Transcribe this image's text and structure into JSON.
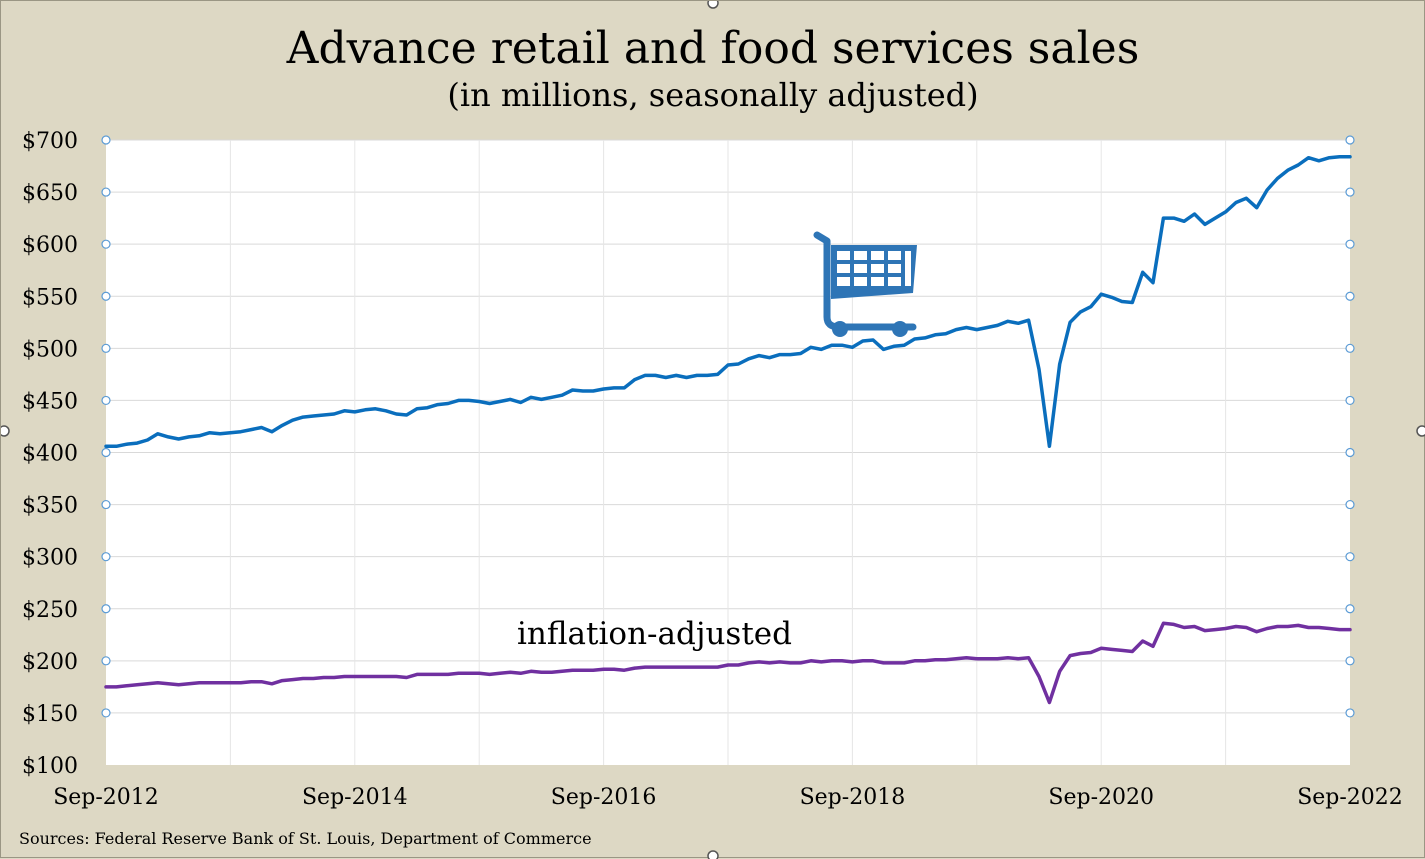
{
  "chart_data": {
    "type": "line",
    "title": "Advance retail and food services sales",
    "subtitle": "(in millions, seasonally adjusted)",
    "annotation": "inflation-adjusted",
    "source": "Sources: Federal Reserve Bank of St. Louis, Department of Commerce",
    "ylim": [
      100,
      700
    ],
    "y_ticks": [
      100,
      150,
      200,
      250,
      300,
      350,
      400,
      450,
      500,
      550,
      600,
      650,
      700
    ],
    "y_tick_labels": [
      "$100",
      "$150",
      "$200",
      "$250",
      "$300",
      "$350",
      "$400",
      "$450",
      "$500",
      "$550",
      "$600",
      "$650",
      "$700"
    ],
    "x_tick_labels": [
      "Sep-2012",
      "Sep-2014",
      "Sep-2016",
      "Sep-2018",
      "Sep-2020",
      "Sep-2022"
    ],
    "x_range": [
      "Sep-2012",
      "Sep-2022"
    ],
    "grid": true,
    "icon": "shopping-cart-icon",
    "colors": {
      "nominal": "#0a6ebd",
      "real": "#7030a0",
      "background": "#ddd8c4",
      "plot": "#ffffff",
      "cart": "#2e75b6"
    },
    "series": [
      {
        "values": [
          406,
          406,
          408,
          409,
          412,
          418,
          415,
          413,
          415,
          416,
          419,
          418,
          419,
          420,
          422,
          424,
          420,
          426,
          431,
          434,
          435,
          436,
          437,
          440,
          439,
          441,
          442,
          440,
          437,
          436,
          442,
          443,
          446,
          447,
          450,
          450,
          449,
          447,
          449,
          451,
          448,
          453,
          451,
          453,
          455,
          460,
          459,
          459,
          461,
          462,
          462,
          470,
          474,
          474,
          472,
          474,
          472,
          474,
          474,
          475,
          484,
          485,
          490,
          493,
          491,
          494,
          494,
          495,
          501,
          499,
          503,
          503,
          501,
          507,
          508,
          499,
          502,
          503,
          509,
          510,
          513,
          514,
          518,
          520,
          518,
          520,
          522,
          526,
          524,
          527,
          480,
          406,
          485,
          525,
          535,
          540,
          552,
          549,
          545,
          544,
          573,
          563,
          625,
          625,
          622,
          629,
          619,
          625,
          631,
          640,
          644,
          635,
          652,
          663,
          671,
          676,
          683,
          680,
          683,
          684,
          684
        ]
      },
      {
        "values": [
          175,
          175,
          176,
          177,
          178,
          179,
          178,
          177,
          178,
          179,
          179,
          179,
          179,
          179,
          180,
          180,
          178,
          181,
          182,
          183,
          183,
          184,
          184,
          185,
          185,
          185,
          185,
          185,
          185,
          184,
          187,
          187,
          187,
          187,
          188,
          188,
          188,
          187,
          188,
          189,
          188,
          190,
          189,
          189,
          190,
          191,
          191,
          191,
          192,
          192,
          191,
          193,
          194,
          194,
          194,
          194,
          194,
          194,
          194,
          194,
          196,
          196,
          198,
          199,
          198,
          199,
          198,
          198,
          200,
          199,
          200,
          200,
          199,
          200,
          200,
          198,
          198,
          198,
          200,
          200,
          201,
          201,
          202,
          203,
          202,
          202,
          202,
          203,
          202,
          203,
          185,
          160,
          190,
          205,
          207,
          208,
          212,
          211,
          210,
          209,
          219,
          214,
          236,
          235,
          232,
          233,
          229,
          230,
          231,
          233,
          232,
          228,
          231,
          233,
          233,
          234,
          232,
          232,
          231,
          230,
          230
        ]
      }
    ]
  }
}
